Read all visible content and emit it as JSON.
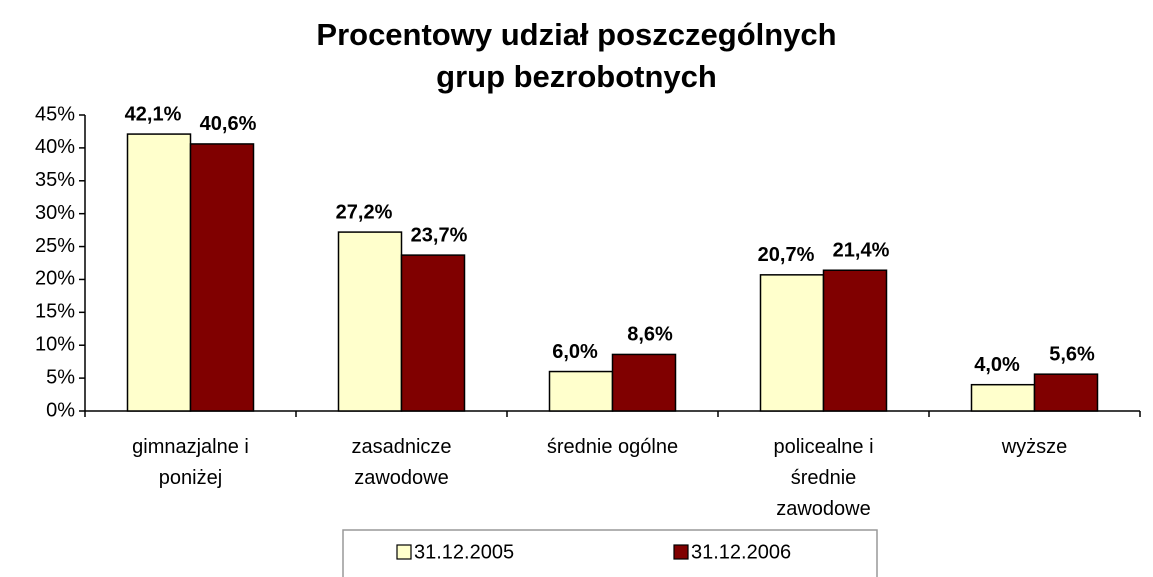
{
  "chart_data": {
    "type": "bar",
    "title": "Procentowy udział poszczególnych\ngrup bezrobotnych",
    "categories": [
      "gimnazjalne i\nponiżej",
      "zasadnicze\nzawodowe",
      "średnie ogólne",
      "policealne i\nśrednie\nzawodowe",
      "wyższe"
    ],
    "series": [
      {
        "name": "31.12.2005",
        "color": "#ffffcc",
        "values": [
          42.1,
          27.2,
          6.0,
          20.7,
          4.0
        ],
        "value_labels": [
          "42,1%",
          "27,2%",
          "6,0%",
          "20,7%",
          "4,0%"
        ]
      },
      {
        "name": "31.12.2006",
        "color": "#800000",
        "values": [
          40.6,
          23.7,
          8.6,
          21.4,
          5.6
        ],
        "value_labels": [
          "40,6%",
          "23,7%",
          "8,6%",
          "21,4%",
          "5,6%"
        ]
      }
    ],
    "ylim": [
      0,
      45
    ],
    "yticks": [
      {
        "value": 0,
        "label": "0%"
      },
      {
        "value": 5,
        "label": "5%"
      },
      {
        "value": 10,
        "label": "10%"
      },
      {
        "value": 15,
        "label": "15%"
      },
      {
        "value": 20,
        "label": "20%"
      },
      {
        "value": 25,
        "label": "25%"
      },
      {
        "value": 30,
        "label": "30%"
      },
      {
        "value": 35,
        "label": "35%"
      },
      {
        "value": 40,
        "label": "40%"
      },
      {
        "value": 45,
        "label": "45%"
      }
    ],
    "grid": false,
    "legend": "bottom"
  }
}
